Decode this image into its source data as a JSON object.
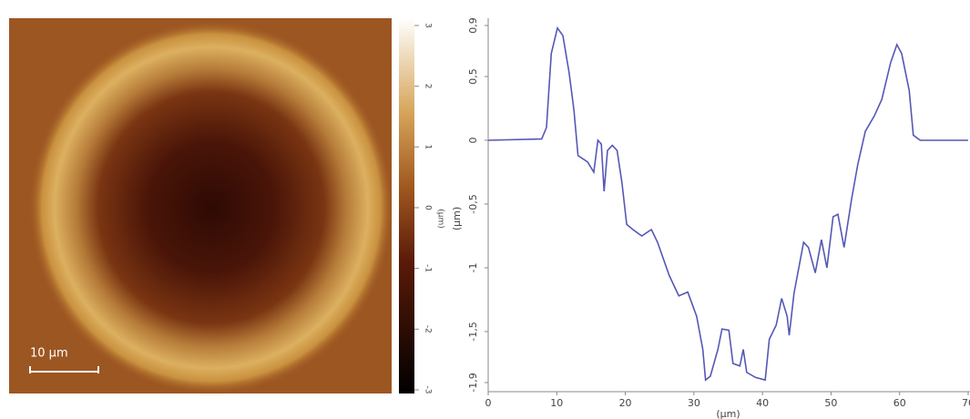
{
  "chart_data": [
    {
      "type": "image",
      "colorbar_label": "(µm)",
      "scale_bar": "10 µm",
      "ylim": [
        -3,
        3
      ],
      "yticks": [
        3,
        2,
        1,
        0,
        -1,
        -2,
        -3
      ]
    },
    {
      "type": "line",
      "xlabel": "(µm)",
      "ylabel": "(µm)",
      "color": "#5558b5",
      "x": [
        0,
        7.8,
        8.5,
        9.2,
        10.1,
        10.9,
        11.8,
        12.5,
        13.1,
        14.5,
        15.4,
        16,
        16.5,
        16.9,
        17.4,
        18.1,
        18.8,
        19.5,
        20.2,
        21.1,
        22.4,
        23.8,
        24.7,
        26.4,
        27.8,
        29.1,
        30.4,
        31.3,
        31.7,
        32.4,
        33.5,
        34.1,
        35.1,
        35.7,
        36.7,
        37.2,
        37.7,
        39,
        40.4,
        41,
        42,
        42.8,
        43.6,
        43.9,
        44.6,
        46,
        46.7,
        47.7,
        48.6,
        49.4,
        50.3,
        51,
        51.9,
        53,
        53.9,
        55,
        56.3,
        57.4,
        58.7,
        59.6,
        60.3,
        61.4,
        62,
        63,
        70
      ],
      "values": [
        0,
        0.01,
        0.1,
        0.68,
        0.88,
        0.82,
        0.53,
        0.24,
        -0.12,
        -0.17,
        -0.25,
        0,
        -0.03,
        -0.4,
        -0.08,
        -0.04,
        -0.08,
        -0.33,
        -0.66,
        -0.7,
        -0.75,
        -0.7,
        -0.8,
        -1.06,
        -1.22,
        -1.19,
        -1.38,
        -1.64,
        -1.88,
        -1.85,
        -1.64,
        -1.48,
        -1.49,
        -1.75,
        -1.77,
        -1.64,
        -1.82,
        -1.86,
        -1.88,
        -1.56,
        -1.45,
        -1.24,
        -1.38,
        -1.53,
        -1.2,
        -0.8,
        -0.84,
        -1.04,
        -0.78,
        -1,
        -0.6,
        -0.58,
        -0.84,
        -0.46,
        -0.19,
        0.07,
        0.19,
        0.32,
        0.61,
        0.75,
        0.68,
        0.39,
        0.04,
        0,
        0
      ],
      "xlim": [
        0,
        70
      ],
      "ylim": [
        -1.9,
        0.9
      ],
      "xticks": [
        0,
        10,
        20,
        30,
        40,
        50,
        60,
        70
      ],
      "yticks": [
        {
          "value": 0.9,
          "label": "0,9"
        },
        {
          "value": 0.5,
          "label": "0,5"
        },
        0,
        {
          "value": -0.5,
          "label": "-0,5"
        },
        -1,
        {
          "value": -1.5,
          "label": "-1,5"
        },
        {
          "value": -1.9,
          "label": "-1,9"
        }
      ]
    }
  ]
}
